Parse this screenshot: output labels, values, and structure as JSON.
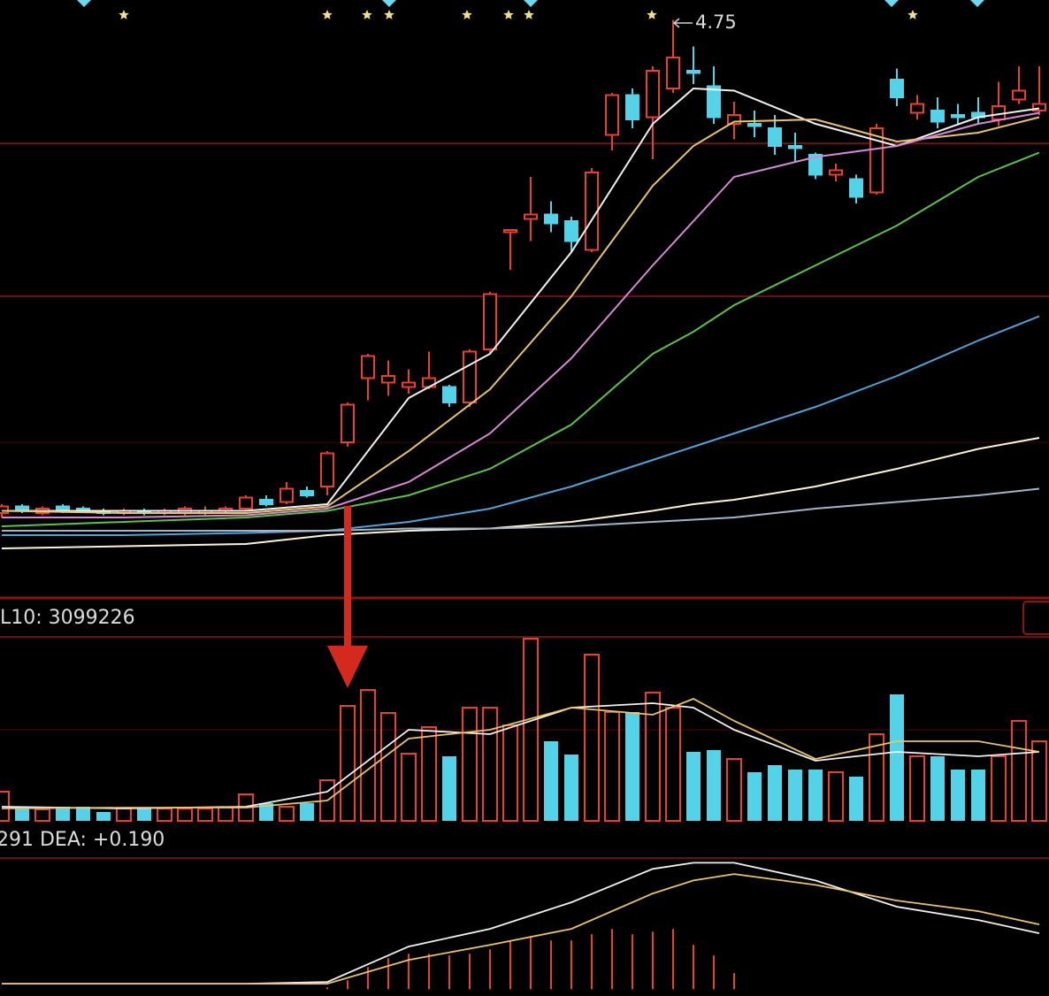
{
  "chart_data": [
    {
      "type": "candlestick",
      "up_color": "#e8402f",
      "down_color": "#54d2e8",
      "ylim": [
        2.2,
        4.84
      ],
      "ohlc": [
        [
          2.52,
          2.56,
          2.5,
          2.55
        ],
        [
          2.55,
          2.56,
          2.52,
          2.53
        ],
        [
          2.52,
          2.55,
          2.51,
          2.54
        ],
        [
          2.55,
          2.56,
          2.52,
          2.53
        ],
        [
          2.54,
          2.55,
          2.52,
          2.53
        ],
        [
          2.53,
          2.54,
          2.51,
          2.52
        ],
        [
          2.52,
          2.54,
          2.51,
          2.53
        ],
        [
          2.53,
          2.54,
          2.51,
          2.52
        ],
        [
          2.52,
          2.54,
          2.51,
          2.53
        ],
        [
          2.52,
          2.55,
          2.51,
          2.54
        ],
        [
          2.52,
          2.55,
          2.51,
          2.53
        ],
        [
          2.53,
          2.55,
          2.52,
          2.54
        ],
        [
          2.54,
          2.6,
          2.53,
          2.59
        ],
        [
          2.58,
          2.6,
          2.55,
          2.56
        ],
        [
          2.57,
          2.66,
          2.56,
          2.63
        ],
        [
          2.62,
          2.64,
          2.59,
          2.6
        ],
        [
          2.64,
          2.8,
          2.6,
          2.79
        ],
        [
          2.84,
          3.02,
          2.82,
          3.01
        ],
        [
          3.13,
          3.24,
          3.03,
          3.23
        ],
        [
          3.11,
          3.21,
          3.05,
          3.14
        ],
        [
          3.09,
          3.17,
          3.06,
          3.11
        ],
        [
          3.09,
          3.25,
          3.08,
          3.13
        ],
        [
          3.09,
          3.1,
          3.0,
          3.02
        ],
        [
          3.02,
          3.26,
          3.0,
          3.25
        ],
        [
          3.26,
          3.52,
          3.24,
          3.51
        ],
        [
          3.79,
          3.8,
          3.62,
          3.8
        ],
        [
          3.85,
          4.04,
          3.75,
          3.87
        ],
        [
          3.87,
          3.93,
          3.79,
          3.83
        ],
        [
          3.84,
          3.86,
          3.7,
          3.75
        ],
        [
          3.71,
          4.08,
          3.7,
          4.06
        ],
        [
          4.23,
          4.42,
          4.16,
          4.41
        ],
        [
          4.41,
          4.44,
          4.26,
          4.3
        ],
        [
          4.31,
          4.54,
          4.12,
          4.52
        ],
        [
          4.44,
          4.75,
          4.42,
          4.58
        ],
        [
          4.52,
          4.63,
          4.46,
          4.51
        ],
        [
          4.45,
          4.54,
          4.28,
          4.31
        ],
        [
          4.28,
          4.38,
          4.21,
          4.32
        ],
        [
          4.28,
          4.34,
          4.22,
          4.27
        ],
        [
          4.26,
          4.32,
          4.14,
          4.18
        ],
        [
          4.18,
          4.24,
          4.11,
          4.17
        ],
        [
          4.14,
          4.15,
          4.03,
          4.05
        ],
        [
          4.05,
          4.1,
          4.02,
          4.07
        ],
        [
          4.03,
          4.05,
          3.92,
          3.95
        ],
        [
          3.97,
          4.28,
          3.96,
          4.26
        ],
        [
          4.48,
          4.53,
          4.36,
          4.4
        ],
        [
          4.33,
          4.41,
          4.3,
          4.37
        ],
        [
          4.34,
          4.4,
          4.26,
          4.29
        ],
        [
          4.32,
          4.37,
          4.28,
          4.31
        ],
        [
          4.33,
          4.4,
          4.28,
          4.31
        ],
        [
          4.3,
          4.47,
          4.27,
          4.36
        ],
        [
          4.39,
          4.54,
          4.37,
          4.43
        ],
        [
          4.34,
          4.54,
          4.32,
          4.37
        ]
      ],
      "line_x": [
        0,
        6,
        12,
        16,
        20,
        24,
        28,
        32,
        34,
        36,
        40,
        44,
        48,
        51
      ],
      "lines": [
        {
          "color": "#f2f2f2",
          "values": [
            2.53,
            2.53,
            2.53,
            2.56,
            3.04,
            3.24,
            3.7,
            4.28,
            4.44,
            4.43,
            4.28,
            4.18,
            4.31,
            4.35
          ]
        },
        {
          "color": "#e8c46a",
          "values": [
            2.53,
            2.52,
            2.52,
            2.55,
            2.8,
            3.08,
            3.5,
            4.0,
            4.18,
            4.29,
            4.3,
            4.2,
            4.24,
            4.31
          ]
        },
        {
          "color": "#d68ad6",
          "values": [
            2.5,
            2.5,
            2.51,
            2.54,
            2.66,
            2.88,
            3.22,
            3.64,
            3.84,
            4.04,
            4.13,
            4.18,
            4.28,
            4.33
          ]
        },
        {
          "color": "#5cc24a",
          "values": [
            2.46,
            2.48,
            2.5,
            2.53,
            2.6,
            2.72,
            2.92,
            3.24,
            3.34,
            3.46,
            3.64,
            3.82,
            4.04,
            4.15
          ]
        },
        {
          "color": "#4fa3d6",
          "values": [
            2.42,
            2.42,
            2.43,
            2.44,
            2.48,
            2.54,
            2.64,
            2.76,
            2.82,
            2.88,
            3.0,
            3.14,
            3.3,
            3.41
          ]
        },
        {
          "color": "#fff3d6",
          "values": [
            2.36,
            2.37,
            2.38,
            2.42,
            2.44,
            2.45,
            2.48,
            2.53,
            2.56,
            2.58,
            2.64,
            2.72,
            2.81,
            2.86
          ]
        },
        {
          "color": "#9fb7c9",
          "values": [
            2.44,
            2.44,
            2.44,
            2.44,
            2.45,
            2.45,
            2.46,
            2.48,
            2.49,
            2.5,
            2.54,
            2.57,
            2.6,
            2.63
          ]
        }
      ]
    },
    {
      "type": "volume",
      "label": "L10: 3099226",
      "up_color": "#e8402f",
      "down_color": "#54d2e8",
      "ylim": [
        0,
        8240000
      ],
      "values": [
        1320000,
        640000,
        520000,
        640000,
        640000,
        400000,
        560000,
        600000,
        560000,
        560000,
        560000,
        600000,
        1200000,
        800000,
        640000,
        800000,
        1840000,
        5200000,
        5920000,
        4880000,
        3040000,
        4240000,
        2920000,
        5120000,
        5120000,
        4320000,
        8240000,
        3600000,
        3000000,
        7520000,
        4920000,
        4920000,
        5800000,
        5120000,
        3120000,
        3200000,
        2800000,
        2200000,
        2520000,
        2320000,
        2320000,
        2200000,
        2000000,
        3920000,
        5720000,
        2920000,
        2920000,
        2320000,
        2320000,
        2920000,
        4520000,
        3600000
      ],
      "line_x": [
        0,
        6,
        12,
        16,
        20,
        24,
        28,
        32,
        34,
        36,
        40,
        44,
        48,
        51
      ],
      "lines": [
        {
          "color": "#f2f2f2",
          "values": [
            640000,
            560000,
            640000,
            1320000,
            4120000,
            3920000,
            5120000,
            5320000,
            5120000,
            4120000,
            2720000,
            3120000,
            2920000,
            3120000
          ]
        },
        {
          "color": "#e8c46a",
          "values": [
            560000,
            600000,
            600000,
            920000,
            3720000,
            4120000,
            5120000,
            4800000,
            5520000,
            4520000,
            2800000,
            3600000,
            3600000,
            3120000
          ]
        }
      ]
    },
    {
      "type": "macd",
      "label": "291 DEA: +0.190",
      "color": "#e8402f",
      "ylim": [
        -0.02,
        0.385
      ],
      "values": [
        0,
        0,
        0,
        0,
        0,
        0,
        0,
        0,
        0,
        0,
        0,
        0,
        0,
        0,
        0,
        0,
        0.005,
        0.026,
        0.065,
        0.091,
        0.104,
        0.104,
        0.099,
        0.104,
        0.117,
        0.143,
        0.156,
        0.143,
        0.143,
        0.161,
        0.177,
        0.161,
        0.169,
        0.177,
        0.13,
        0.099,
        0.047,
        null,
        null,
        null,
        null,
        null,
        null,
        null,
        null,
        null,
        null,
        null,
        null,
        null,
        null,
        null
      ],
      "line_x": [
        0,
        6,
        12,
        16,
        20,
        24,
        28,
        32,
        34,
        36,
        40,
        44,
        48,
        51
      ],
      "lines": [
        {
          "color": "#f2f2f2",
          "values": [
            0.016,
            0.016,
            0.016,
            0.021,
            0.125,
            0.177,
            0.255,
            0.353,
            0.371,
            0.371,
            0.319,
            0.242,
            0.203,
            0.164
          ]
        },
        {
          "color": "#e8c46a",
          "values": [
            0.016,
            0.016,
            0.016,
            0.016,
            0.086,
            0.13,
            0.177,
            0.281,
            0.319,
            0.338,
            0.306,
            0.26,
            0.229,
            0.19
          ]
        }
      ]
    }
  ]
}
